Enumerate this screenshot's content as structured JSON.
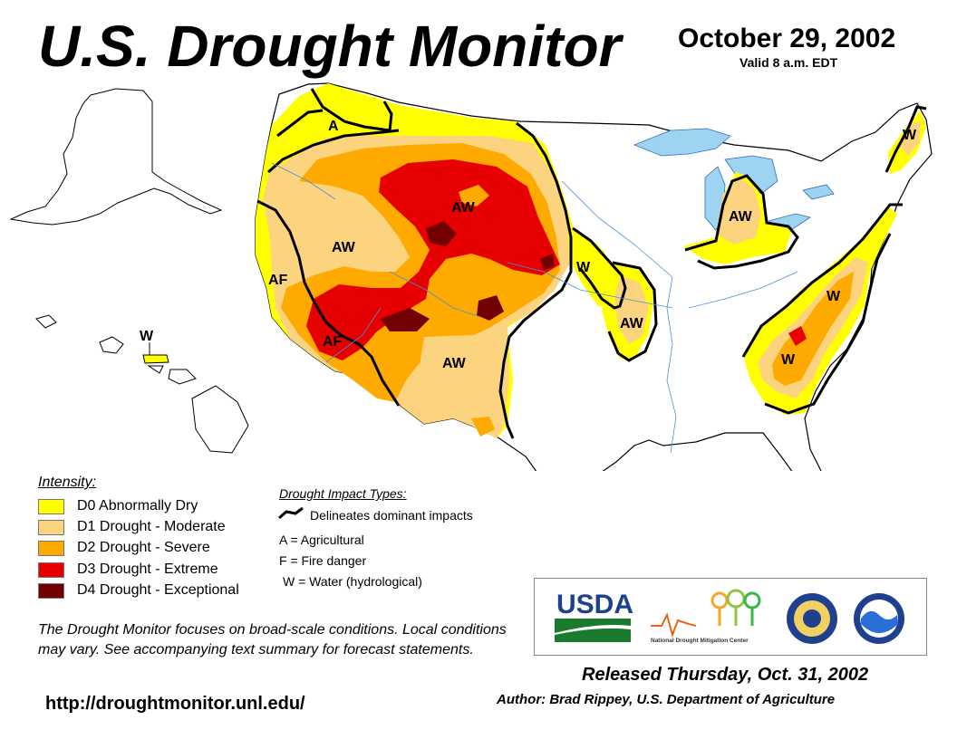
{
  "title": "U.S. Drought Monitor",
  "date": "October 29, 2002",
  "valid": "Valid 8 a.m. EDT",
  "legend": {
    "title": "Intensity:",
    "items": [
      {
        "label": "D0 Abnormally Dry",
        "color": "#ffff00"
      },
      {
        "label": "D1 Drought - Moderate",
        "color": "#fcd37f"
      },
      {
        "label": "D2 Drought - Severe",
        "color": "#ffaa00"
      },
      {
        "label": "D3 Drought - Extreme",
        "color": "#e60000"
      },
      {
        "label": "D4 Drought - Exceptional",
        "color": "#730000"
      }
    ]
  },
  "impact": {
    "title": "Drought Impact Types:",
    "delineates": "Delineates dominant impacts",
    "codes": [
      "A = Agricultural",
      "F = Fire danger",
      "W = Water (hydrological)"
    ]
  },
  "map_labels": [
    "A",
    "AW",
    "AW",
    "AF",
    "AF",
    "AW",
    "W",
    "AW",
    "AW",
    "W",
    "W",
    "W",
    "W"
  ],
  "note": "The Drought Monitor focuses on broad-scale conditions. Local conditions may vary. See accompanying text summary for forecast statements.",
  "url": "http://droughtmonitor.unl.edu/",
  "logos": {
    "usda": "USDA",
    "ndmc": "National Drought Mitigation Center"
  },
  "released": "Released Thursday, Oct. 31, 2002",
  "author": "Author: Brad Rippey, U.S. Department of Agriculture"
}
